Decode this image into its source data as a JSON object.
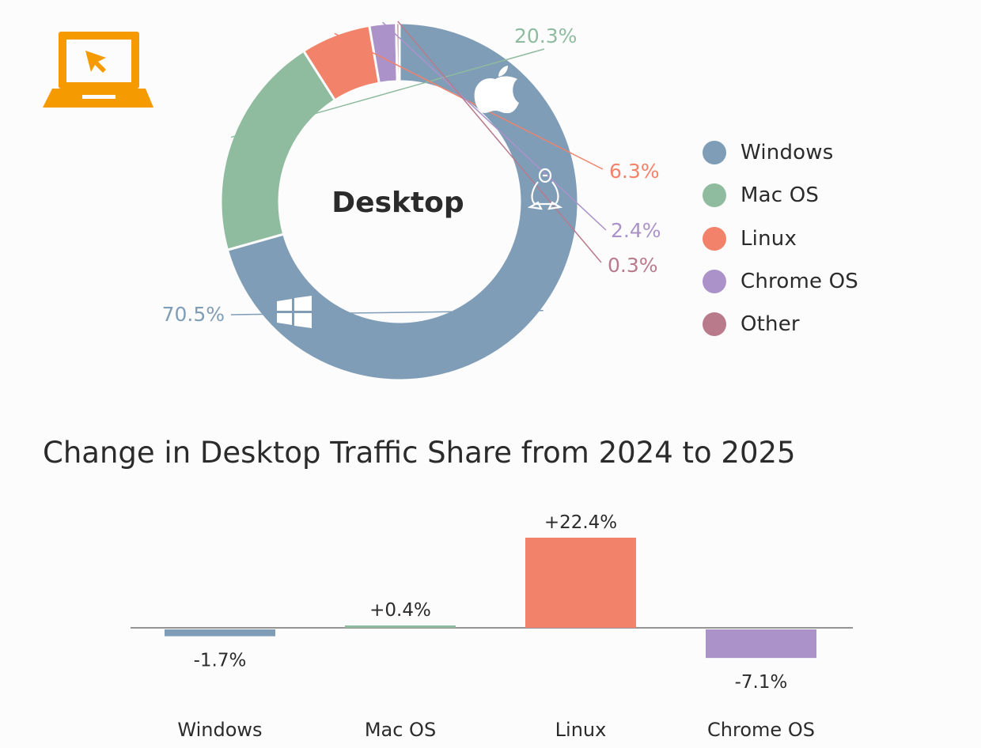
{
  "colors": {
    "Windows": "#7f9db7",
    "Mac OS": "#8fbb9f",
    "Linux": "#f2826a",
    "Chrome OS": "#ab92c9",
    "Other": "#b97a8b",
    "laptop": "#f59a00",
    "text": "#2b2b2b"
  },
  "icons": {
    "laptop": "laptop-cursor-icon",
    "mac": "apple-icon",
    "linux": "penguin-icon",
    "windows": "windows-icon"
  },
  "chart_data": [
    {
      "type": "pie",
      "variant": "donut",
      "title": "Desktop",
      "categories": [
        "Windows",
        "Mac OS",
        "Linux",
        "Chrome OS",
        "Other"
      ],
      "values": [
        70.5,
        20.3,
        6.3,
        2.4,
        0.3
      ],
      "data_labels": [
        "70.5%",
        "20.3%",
        "6.3%",
        "2.4%",
        "0.3%"
      ],
      "legend": "right"
    },
    {
      "type": "bar",
      "title": "Change in Desktop Traffic Share from 2024 to 2025",
      "categories": [
        "Windows",
        "Mac OS",
        "Linux",
        "Chrome OS"
      ],
      "values": [
        -1.7,
        0.4,
        22.4,
        -7.1
      ],
      "data_labels": [
        "-1.7%",
        "+0.4%",
        "+22.4%",
        "-7.1%"
      ],
      "xlabel": "",
      "ylabel": "",
      "grid": false
    }
  ]
}
